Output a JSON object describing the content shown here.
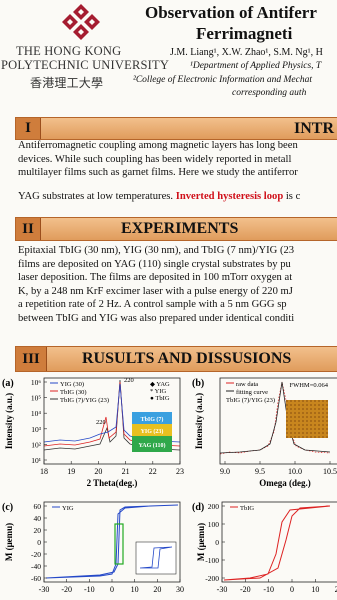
{
  "header": {
    "university_en": [
      "THE HONG KONG",
      "POLYTECHNIC UNIVERSITY"
    ],
    "university_zh": "香港理工大學",
    "title": [
      "Observation of Antiferr",
      "Ferrimagneti"
    ],
    "authors": "J.M. Liang¹, X.W. Zhao¹, S.M. Ng¹, H",
    "affiliations": [
      "¹Department of Applied Physics, T",
      "²College of Electronic Information and Mechat",
      "corresponding auth"
    ]
  },
  "sections": [
    {
      "numeral": "I",
      "heading": "INTR",
      "lines": [
        "Antiferromagnetic coupling among magnetic layers has long been",
        "devices. While such coupling has been widely reported in metall",
        "multilayer films such as garnet films. Here we study the antiferror"
      ],
      "last_line": [
        "YAG substrates at low temperatures. ",
        "Inverted hysteresis loop",
        " is c"
      ]
    },
    {
      "numeral": "II",
      "heading": "EXPERIMENTS",
      "lines": [
        "Epitaxial TbIG (30 nm), YIG (30 nm), and TbIG (7 nm)/YIG (23",
        "films are deposited on YAG (110) single crystal substrates by pu",
        "laser deposition. The films are deposited in 100 mTorr oxygen at",
        "K, by a 248 nm KrF excimer laser with a pulse energy of 220 mJ",
        "a repetition rate of 2 Hz. A control sample with a 5 nm GGG sp",
        "between TbIG and YIG was also prepared under identical conditi"
      ]
    },
    {
      "numeral": "III",
      "heading": "RUSULTS AND DISSUSIONS"
    }
  ],
  "figures": [
    {
      "label": "(a)",
      "ylabel": "Intensity (a.u.)",
      "xlabel": "2 Theta(deg.)",
      "xticks": [
        "18",
        "19",
        "20",
        "21",
        "22",
        "23"
      ],
      "yticks": [
        "10⁶",
        "10⁵",
        "10⁴",
        "10³",
        "10²",
        "10¹"
      ],
      "legend": [
        "YIG (30)",
        "TbIG (30)",
        "TbIG (7)/YIG (23)"
      ],
      "markers": [
        "◆ YAG",
        "* YIG",
        "● TbIG"
      ],
      "peaks": [
        "220",
        "220"
      ],
      "stack": [
        "TbIG (7)",
        "YIG (23)",
        "YAG (110)"
      ]
    },
    {
      "label": "(b)",
      "ylabel": "Intensity (a.u.)",
      "xlabel": "Omega (deg.)",
      "xticks": [
        "9.0",
        "9.5",
        "10.0",
        "10.5"
      ],
      "legend": [
        "raw data",
        "fitting curve",
        "TbIG (7)/YIG (23)"
      ],
      "note": "FWHM=0.064"
    },
    {
      "label": "(c)",
      "ylabel": "M (μemu)",
      "legend": [
        "YIG"
      ],
      "yticks": [
        "60",
        "40",
        "20",
        "0",
        "-20",
        "-40",
        "-60"
      ],
      "xticks": [
        "-30",
        "-20",
        "-10",
        "0",
        "10",
        "20",
        "30"
      ]
    },
    {
      "label": "(d)",
      "ylabel": "M (μemu)",
      "legend": [
        "TbIG"
      ],
      "yticks": [
        "200",
        "100",
        "0",
        "-100",
        "-200"
      ],
      "xticks": [
        "-30",
        "-20",
        "-10",
        "0",
        "10",
        "20",
        "30"
      ]
    }
  ]
}
